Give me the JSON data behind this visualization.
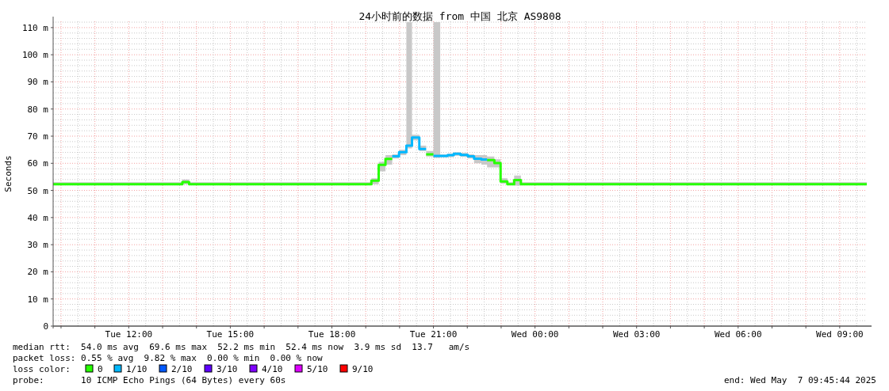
{
  "chart_data": {
    "type": "line",
    "title": "24小时前的数据 from 中国 北京 AS9808",
    "ylabel": "Seconds",
    "xlim": [
      "2025-05-06T09:46",
      "2025-05-07T09:48"
    ],
    "ylim": [
      0,
      112.3
    ],
    "xticks": [
      {
        "value": "2025-05-06T10:00",
        "label": null
      },
      {
        "value": "2025-05-06T11:00",
        "label": null
      },
      {
        "value": "2025-05-06T12:00",
        "label": "Tue 12:00"
      },
      {
        "value": "2025-05-06T13:00",
        "label": null
      },
      {
        "value": "2025-05-06T14:00",
        "label": null
      },
      {
        "value": "2025-05-06T15:00",
        "label": "Tue 15:00"
      },
      {
        "value": "2025-05-06T16:00",
        "label": null
      },
      {
        "value": "2025-05-06T17:00",
        "label": null
      },
      {
        "value": "2025-05-06T18:00",
        "label": "Tue 18:00"
      },
      {
        "value": "2025-05-06T19:00",
        "label": null
      },
      {
        "value": "2025-05-06T20:00",
        "label": null
      },
      {
        "value": "2025-05-06T21:00",
        "label": "Tue 21:00"
      },
      {
        "value": "2025-05-06T22:00",
        "label": null
      },
      {
        "value": "2025-05-06T23:00",
        "label": null
      },
      {
        "value": "2025-05-07T00:00",
        "label": "Wed 00:00"
      },
      {
        "value": "2025-05-07T01:00",
        "label": null
      },
      {
        "value": "2025-05-07T02:00",
        "label": null
      },
      {
        "value": "2025-05-07T03:00",
        "label": "Wed 03:00"
      },
      {
        "value": "2025-05-07T04:00",
        "label": null
      },
      {
        "value": "2025-05-07T05:00",
        "label": null
      },
      {
        "value": "2025-05-07T06:00",
        "label": "Wed 06:00"
      },
      {
        "value": "2025-05-07T07:00",
        "label": null
      },
      {
        "value": "2025-05-07T08:00",
        "label": null
      },
      {
        "value": "2025-05-07T09:00",
        "label": "Wed 09:00"
      }
    ],
    "yticks": [
      0,
      {
        "value": 10,
        "label": "10 m"
      },
      {
        "value": 20,
        "label": "20 m"
      },
      {
        "value": 30,
        "label": "30 m"
      },
      {
        "value": 40,
        "label": "40 m"
      },
      {
        "value": 50,
        "label": "50 m"
      },
      {
        "value": 60,
        "label": "60 m"
      },
      {
        "value": 70,
        "label": "70 m"
      },
      {
        "value": 80,
        "label": "80 m"
      },
      {
        "value": 90,
        "label": "90 m"
      },
      {
        "value": 100,
        "label": "100 m"
      },
      {
        "value": 110,
        "label": "110 m"
      }
    ],
    "grid": true,
    "legend": "bottom",
    "legend_title": "loss color:",
    "x": [
      "2025-05-06T09:46",
      "2025-05-06T13:35",
      "2025-05-06T13:35",
      "2025-05-06T13:47",
      "2025-05-06T13:47",
      "2025-05-06T19:10",
      "2025-05-06T19:10",
      "2025-05-06T19:23",
      "2025-05-06T19:23",
      "2025-05-06T19:35",
      "2025-05-06T19:35",
      "2025-05-06T19:47",
      "2025-05-06T19:47",
      "2025-05-06T19:59",
      "2025-05-06T19:59",
      "2025-05-06T20:12",
      "2025-05-06T20:12",
      "2025-05-06T20:22",
      "2025-05-06T20:22",
      "2025-05-06T20:35",
      "2025-05-06T20:35",
      "2025-05-06T20:47",
      "2025-05-06T20:47",
      "2025-05-06T21:00",
      "2025-05-06T21:00",
      "2025-05-06T21:12",
      "2025-05-06T21:12",
      "2025-05-06T21:25",
      "2025-05-06T21:25",
      "2025-05-06T21:36",
      "2025-05-06T21:36",
      "2025-05-06T21:48",
      "2025-05-06T21:48",
      "2025-05-06T22:01",
      "2025-05-06T22:01",
      "2025-05-06T22:12",
      "2025-05-06T22:12",
      "2025-05-06T22:25",
      "2025-05-06T22:25",
      "2025-05-06T22:35",
      "2025-05-06T22:35",
      "2025-05-06T22:48",
      "2025-05-06T22:48",
      "2025-05-06T22:59",
      "2025-05-06T22:59",
      "2025-05-06T23:11",
      "2025-05-06T23:11",
      "2025-05-06T23:23",
      "2025-05-06T23:23",
      "2025-05-06T23:35",
      "2025-05-06T23:35",
      "2025-05-07T09:48"
    ],
    "series": [
      {
        "name": "0",
        "color": "#26ff00",
        "values": [
          52.3,
          52.3,
          53.1,
          53.1,
          52.3,
          52.3,
          53.6,
          53.6,
          59.4,
          59.4,
          61.6,
          61.6,
          null,
          null,
          null,
          null,
          null,
          null,
          null,
          null,
          null,
          null,
          63.3,
          63.3,
          null,
          null,
          null,
          null,
          null,
          null,
          null,
          null,
          null,
          null,
          null,
          null,
          null,
          null,
          null,
          null,
          61.2,
          61.2,
          60.1,
          60.1,
          53.3,
          53.3,
          52.3,
          52.3,
          53.8,
          53.8,
          52.3,
          52.3
        ],
        "lower": [
          52,
          52,
          52.3,
          52.3,
          52,
          52,
          52.3,
          52.3,
          57,
          57,
          59.5,
          59.5,
          61.8,
          61.8,
          63,
          63,
          65.5,
          65.5,
          68.5,
          68.5,
          64.5,
          64.5,
          62.5,
          62.5,
          62,
          62,
          62.2,
          62.2,
          62.3,
          62.3,
          62.8,
          62.8,
          62.4,
          62.4,
          61.8,
          61.8,
          60,
          60,
          59.5,
          59.5,
          58.5,
          58.5,
          58.5,
          58.5,
          52.5,
          52.5,
          52,
          52,
          51.8,
          51.8,
          52,
          52
        ],
        "upper": [
          53,
          53,
          54,
          54,
          53,
          53,
          54.5,
          54.5,
          60.5,
          60.5,
          63,
          63,
          63.3,
          63.3,
          65,
          65,
          112,
          112,
          70.5,
          70.5,
          66.5,
          66.5,
          64.5,
          64.5,
          112,
          112,
          63.2,
          63.2,
          63.6,
          63.6,
          64,
          64,
          63.8,
          63.8,
          63.3,
          63.3,
          63,
          63,
          63,
          63,
          62.5,
          62.5,
          61.5,
          61.5,
          54.5,
          54.5,
          53,
          53,
          55.5,
          55.5,
          53,
          53
        ]
      },
      {
        "name": "1/10",
        "color": "#00b8ff",
        "values": [
          null,
          null,
          null,
          null,
          null,
          null,
          null,
          null,
          null,
          null,
          null,
          null,
          62.6,
          62.6,
          64.1,
          64.1,
          66.5,
          66.5,
          69.5,
          69.5,
          65.3,
          65.3,
          null,
          null,
          62.7,
          62.7,
          62.7,
          62.7,
          63.0,
          63.0,
          63.5,
          63.5,
          63.1,
          63.1,
          62.6,
          62.6,
          61.7,
          61.7,
          61.4,
          61.4,
          null,
          null,
          null,
          null,
          null,
          null,
          null,
          null,
          null,
          null,
          null,
          null
        ]
      },
      {
        "name": "2/10",
        "color": "#0059ff",
        "values": [
          null,
          null,
          null,
          null,
          null,
          null,
          null,
          null,
          null,
          null,
          null,
          null,
          null,
          null,
          null,
          null,
          null,
          null,
          null,
          null,
          null,
          null,
          null,
          null,
          null,
          null,
          null,
          null,
          null,
          null,
          null,
          null,
          null,
          null,
          null,
          null,
          null,
          null,
          null,
          null,
          null,
          null,
          null,
          null,
          null,
          null,
          null,
          null,
          null,
          null,
          null,
          null
        ]
      },
      {
        "name": "3/10",
        "color": "#5e00ff",
        "values": [
          null,
          null,
          null,
          null,
          null,
          null,
          null,
          null,
          null,
          null,
          null,
          null,
          null,
          null,
          null,
          null,
          null,
          null,
          null,
          null,
          null,
          null,
          null,
          null,
          null,
          null,
          null,
          null,
          null,
          null,
          null,
          null,
          null,
          null,
          null,
          null,
          null,
          null,
          null,
          null,
          null,
          null,
          null,
          null,
          null,
          null,
          null,
          null,
          null,
          null,
          null,
          null
        ]
      },
      {
        "name": "4/10",
        "color": "#7e00ff",
        "values": [
          null,
          null,
          null,
          null,
          null,
          null,
          null,
          null,
          null,
          null,
          null,
          null,
          null,
          null,
          null,
          null,
          null,
          null,
          null,
          null,
          null,
          null,
          null,
          null,
          null,
          null,
          null,
          null,
          null,
          null,
          null,
          null,
          null,
          null,
          null,
          null,
          null,
          null,
          null,
          null,
          null,
          null,
          null,
          null,
          null,
          null,
          null,
          null,
          null,
          null,
          null,
          null
        ]
      },
      {
        "name": "5/10",
        "color": "#dd00ff",
        "values": [
          null,
          null,
          null,
          null,
          null,
          null,
          null,
          null,
          null,
          null,
          null,
          null,
          null,
          null,
          null,
          null,
          null,
          null,
          null,
          null,
          null,
          null,
          null,
          null,
          null,
          null,
          null,
          null,
          null,
          null,
          null,
          null,
          null,
          null,
          null,
          null,
          null,
          null,
          null,
          null,
          null,
          null,
          null,
          null,
          null,
          null,
          null,
          null,
          null,
          null,
          null,
          null
        ]
      },
      {
        "name": "9/10",
        "color": "#ff0000",
        "values": [
          null,
          null,
          null,
          null,
          null,
          null,
          null,
          null,
          null,
          null,
          null,
          null,
          null,
          null,
          null,
          null,
          null,
          null,
          null,
          null,
          null,
          null,
          null,
          null,
          null,
          null,
          null,
          null,
          null,
          null,
          null,
          null,
          null,
          null,
          null,
          null,
          null,
          null,
          null,
          null,
          null,
          null,
          null,
          null,
          null,
          null,
          null,
          null,
          null,
          null,
          null,
          null
        ]
      }
    ],
    "annotations": [
      "median rtt:  54.0 ms avg  69.6 ms max  52.2 ms min  52.4 ms now  3.9 ms sd  13.7   am/s",
      "packet loss: 0.55 % avg  9.82 % max  0.00 % min  0.00 % now",
      "probe:       10 ICMP Echo Pings (64 Bytes) every 60s",
      "end: Wed May  7 09:45:44 2025"
    ]
  }
}
